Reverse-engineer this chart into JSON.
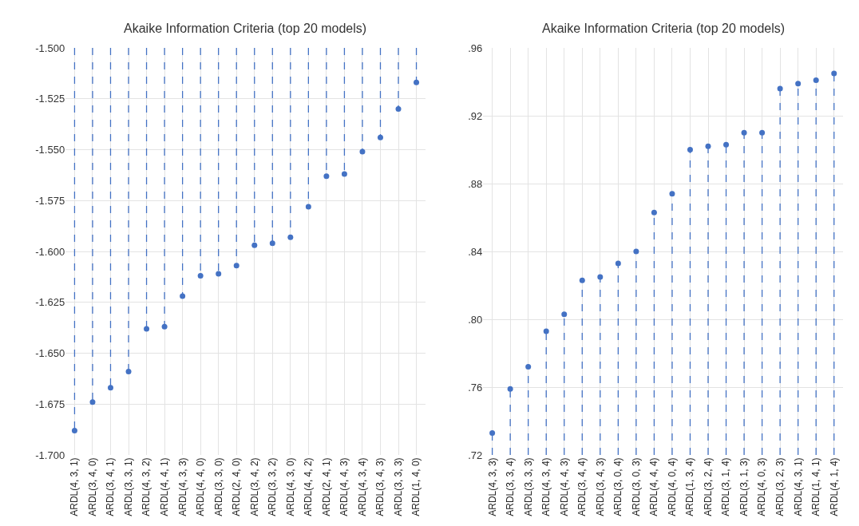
{
  "chart_data": [
    {
      "type": "lollipop",
      "title": "Akaike Information Criteria (top 20 models)",
      "categories": [
        "ARDL(4, 3, 1)",
        "ARDL(3, 4, 0)",
        "ARDL(3, 4, 1)",
        "ARDL(3, 3, 1)",
        "ARDL(4, 3, 2)",
        "ARDL(4, 4, 1)",
        "ARDL(4, 3, 3)",
        "ARDL(4, 4, 0)",
        "ARDL(3, 3, 0)",
        "ARDL(2, 4, 0)",
        "ARDL(3, 4, 2)",
        "ARDL(3, 3, 2)",
        "ARDL(4, 3, 0)",
        "ARDL(4, 4, 2)",
        "ARDL(2, 4, 1)",
        "ARDL(4, 4, 3)",
        "ARDL(4, 3, 4)",
        "ARDL(3, 4, 3)",
        "ARDL(3, 3, 3)",
        "ARDL(1, 4, 0)"
      ],
      "values": [
        -1.688,
        -1.674,
        -1.667,
        -1.659,
        -1.638,
        -1.637,
        -1.622,
        -1.612,
        -1.611,
        -1.607,
        -1.597,
        -1.596,
        -1.593,
        -1.578,
        -1.563,
        -1.562,
        -1.551,
        -1.544,
        -1.53,
        -1.517
      ],
      "color": "#4472c4",
      "ylim": [
        -1.7,
        -1.5
      ],
      "yticks": [
        {
          "value": -1.5,
          "label": "-1.500"
        },
        {
          "value": -1.525,
          "label": "-1.525"
        },
        {
          "value": -1.55,
          "label": "-1.550"
        },
        {
          "value": -1.575,
          "label": "-1.575"
        },
        {
          "value": -1.6,
          "label": "-1.600"
        },
        {
          "value": -1.625,
          "label": "-1.625"
        },
        {
          "value": -1.65,
          "label": "-1.650"
        },
        {
          "value": -1.675,
          "label": "-1.675"
        },
        {
          "value": -1.7,
          "label": "-1.700"
        }
      ],
      "grid": true,
      "marker": "circle",
      "line_style": "dashed"
    },
    {
      "type": "lollipop",
      "title": "Akaike Information Criteria (top 20 models)",
      "categories": [
        "ARDL(4, 3, 3)",
        "ARDL(3, 3, 4)",
        "ARDL(3, 3, 3)",
        "ARDL(4, 3, 4)",
        "ARDL(4, 4, 3)",
        "ARDL(3, 4, 4)",
        "ARDL(3, 4, 3)",
        "ARDL(3, 0, 4)",
        "ARDL(3, 0, 3)",
        "ARDL(4, 4, 4)",
        "ARDL(4, 0, 4)",
        "ARDL(1, 3, 4)",
        "ARDL(3, 2, 4)",
        "ARDL(3, 1, 4)",
        "ARDL(3, 1, 3)",
        "ARDL(4, 0, 3)",
        "ARDL(3, 2, 3)",
        "ARDL(4, 3, 1)",
        "ARDL(1, 4, 1)",
        "ARDL(4, 1, 4)"
      ],
      "values": [
        0.733,
        0.759,
        0.772,
        0.793,
        0.803,
        0.823,
        0.825,
        0.833,
        0.84,
        0.863,
        0.874,
        0.9,
        0.902,
        0.903,
        0.91,
        0.91,
        0.936,
        0.939,
        0.941,
        0.945
      ],
      "color": "#4472c4",
      "ylim": [
        0.72,
        0.96
      ],
      "yticks": [
        {
          "value": 0.72,
          "label": ".72"
        },
        {
          "value": 0.76,
          "label": ".76"
        },
        {
          "value": 0.8,
          "label": ".80"
        },
        {
          "value": 0.84,
          "label": ".84"
        },
        {
          "value": 0.88,
          "label": ".88"
        },
        {
          "value": 0.92,
          "label": ".92"
        },
        {
          "value": 0.96,
          "label": ".96"
        }
      ],
      "grid": true,
      "marker": "circle",
      "line_style": "dashed"
    }
  ]
}
